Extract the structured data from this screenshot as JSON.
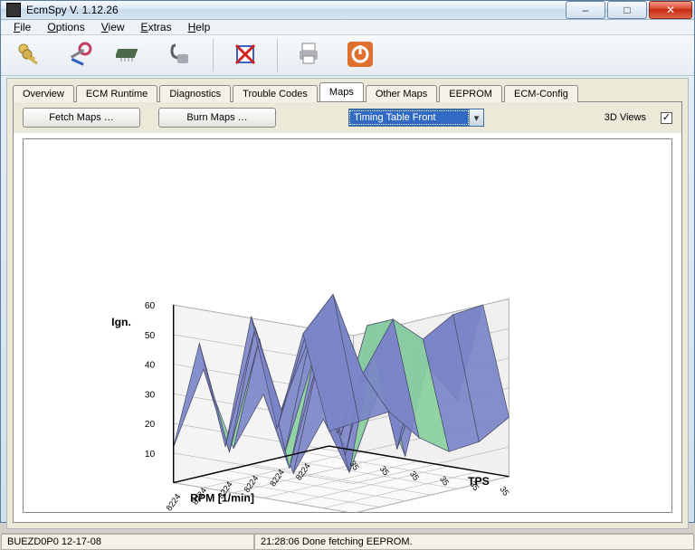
{
  "window": {
    "title": "EcmSpy V. 1.12.26",
    "buttons": {
      "min": "–",
      "max": "□",
      "close": "✕"
    }
  },
  "menu": {
    "file": "File",
    "options": "Options",
    "view": "View",
    "extras": "Extras",
    "help": "Help"
  },
  "toolbar_icons": [
    "keys",
    "tools",
    "chip",
    "plug",
    "blank",
    "x",
    "blank",
    "print",
    "power"
  ],
  "tabs": {
    "items": [
      "Overview",
      "ECM Runtime",
      "Diagnostics",
      "Trouble Codes",
      "Maps",
      "Other Maps",
      "EEPROM",
      "ECM-Config"
    ],
    "active": 4
  },
  "controls": {
    "fetch": "Fetch Maps …",
    "burn": "Burn Maps …",
    "dropdown": "Timing Table Front",
    "views_label": "3D Views",
    "views_checked": true
  },
  "chart": {
    "z_label": "Ign.",
    "x_label": "RPM [1/min]",
    "y_label": "TPS",
    "z_ticks": [
      10,
      20,
      30,
      40,
      50,
      60
    ],
    "x_ticks": [
      "8224",
      "8224",
      "8224",
      "8224",
      "8224",
      "8224"
    ],
    "y_ticks": [
      "35",
      "35",
      "35",
      "35",
      "35",
      "35"
    ],
    "colors": {
      "axis": "#000000",
      "grid": "#b0b0b0",
      "fill1": "#7a86c8",
      "fill2": "#8ad0a0",
      "fill3": "#e89a8a",
      "edge": "#4a4a6a",
      "bg": "#ffffff"
    },
    "zmax": 60,
    "grid_rows": 7,
    "grid_cols": 7,
    "data": [
      [
        5,
        10,
        15,
        8,
        5,
        10,
        20
      ],
      [
        40,
        55,
        30,
        50,
        45,
        55,
        60
      ],
      [
        10,
        45,
        12,
        50,
        10,
        40,
        30
      ],
      [
        50,
        20,
        48,
        15,
        52,
        20,
        50
      ],
      [
        8,
        50,
        10,
        45,
        12,
        55,
        15
      ],
      [
        45,
        10,
        50,
        8,
        48,
        10,
        40
      ],
      [
        12,
        40,
        15,
        35,
        10,
        30,
        20
      ]
    ]
  },
  "status": {
    "left": "BUEZD0P0 12-17-08",
    "right": "21:28:06 Done fetching EEPROM."
  }
}
